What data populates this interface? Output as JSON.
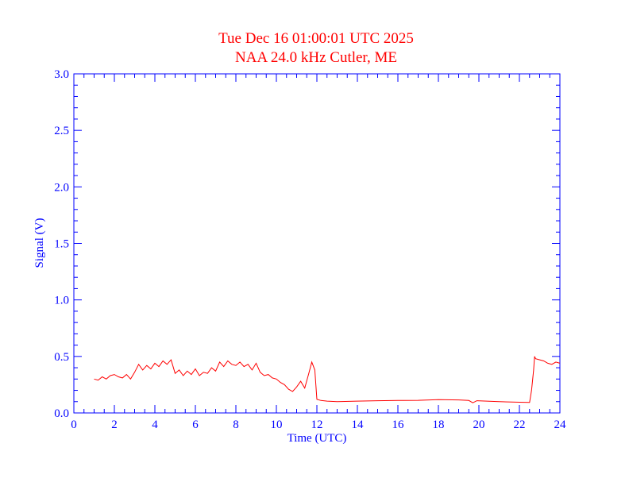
{
  "chart_data": {
    "type": "line",
    "title": "Tue Dec 16 01:00:01 UTC 2025",
    "subtitle": "NAA 24.0 kHz Cutler, ME",
    "xlabel": "Time (UTC)",
    "ylabel": "Signal (V)",
    "xlim": [
      0,
      24
    ],
    "ylim": [
      0.0,
      3.0
    ],
    "xticks": [
      "0",
      "2",
      "4",
      "6",
      "8",
      "10",
      "12",
      "14",
      "16",
      "18",
      "20",
      "22",
      "24"
    ],
    "yticks": [
      "0.0",
      "0.5",
      "1.0",
      "1.5",
      "2.0",
      "2.5",
      "3.0"
    ],
    "grid": false,
    "colors": {
      "axes": "#0000ff",
      "title": "#ff0000",
      "series": "#ff0000"
    },
    "series": [
      {
        "x": [
          1.0,
          1.2,
          1.4,
          1.6,
          1.8,
          2.0,
          2.2,
          2.4,
          2.6,
          2.8,
          3.0,
          3.2,
          3.4,
          3.6,
          3.8,
          4.0,
          4.2,
          4.4,
          4.6,
          4.8,
          5.0,
          5.2,
          5.4,
          5.6,
          5.8,
          6.0,
          6.2,
          6.4,
          6.6,
          6.8,
          7.0,
          7.2,
          7.4,
          7.6,
          7.8,
          8.0,
          8.2,
          8.4,
          8.6,
          8.8,
          9.0,
          9.2,
          9.4,
          9.6,
          9.8,
          10.0,
          10.2,
          10.4,
          10.6,
          10.8,
          11.0,
          11.2,
          11.4,
          11.6,
          11.75,
          11.9,
          12.0,
          12.2,
          12.5,
          13.0,
          14.0,
          15.0,
          16.0,
          17.0,
          18.0,
          19.0,
          19.5,
          19.7,
          19.9,
          20.5,
          21.0,
          22.0,
          22.5,
          22.6,
          22.7,
          22.75,
          22.8,
          23.0,
          23.2,
          23.4,
          23.6,
          23.8,
          24.0
        ],
        "y": [
          0.3,
          0.29,
          0.32,
          0.3,
          0.33,
          0.34,
          0.32,
          0.31,
          0.34,
          0.3,
          0.36,
          0.43,
          0.38,
          0.42,
          0.39,
          0.44,
          0.41,
          0.46,
          0.43,
          0.47,
          0.35,
          0.38,
          0.33,
          0.37,
          0.34,
          0.39,
          0.33,
          0.36,
          0.35,
          0.4,
          0.37,
          0.45,
          0.41,
          0.46,
          0.43,
          0.42,
          0.45,
          0.41,
          0.43,
          0.38,
          0.44,
          0.36,
          0.33,
          0.34,
          0.31,
          0.3,
          0.27,
          0.25,
          0.21,
          0.19,
          0.23,
          0.28,
          0.22,
          0.35,
          0.45,
          0.38,
          0.12,
          0.11,
          0.105,
          0.1,
          0.105,
          0.108,
          0.11,
          0.112,
          0.118,
          0.115,
          0.11,
          0.09,
          0.108,
          0.103,
          0.1,
          0.095,
          0.093,
          0.2,
          0.38,
          0.5,
          0.48,
          0.47,
          0.46,
          0.44,
          0.43,
          0.45,
          0.44
        ]
      }
    ]
  }
}
